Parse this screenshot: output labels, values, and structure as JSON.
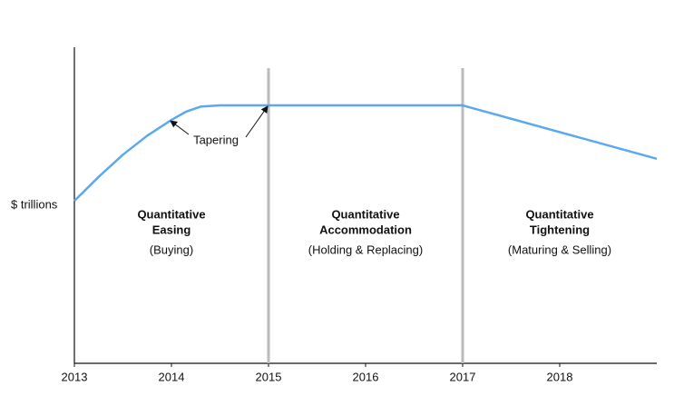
{
  "chart_data": {
    "type": "line",
    "y_label": "$ trillions",
    "x": [
      2013,
      2013.25,
      2013.5,
      2013.75,
      2014,
      2014.15,
      2014.3,
      2014.5,
      2015,
      2017,
      2019
    ],
    "values": [
      51.4,
      59,
      66,
      72,
      77,
      79.6,
      81.2,
      81.6,
      81.6,
      81.6,
      64.7
    ],
    "color": "#5aa9f0",
    "xlim": [
      2013,
      2019
    ],
    "xticks": [
      2013,
      2014,
      2015,
      2016,
      2017,
      2018
    ],
    "ylim": [
      0,
      100
    ],
    "dividers": [
      2015,
      2017
    ],
    "annotation": {
      "text": "Tapering"
    },
    "regions": [
      {
        "title": [
          "Quantitative",
          "Easing"
        ],
        "subtitle": "(Buying)"
      },
      {
        "title": [
          "Quantitative",
          "Accommodation"
        ],
        "subtitle": "(Holding & Replacing)"
      },
      {
        "title": [
          "Quantitative",
          "Tightening"
        ],
        "subtitle": "(Maturing & Selling)"
      }
    ]
  }
}
